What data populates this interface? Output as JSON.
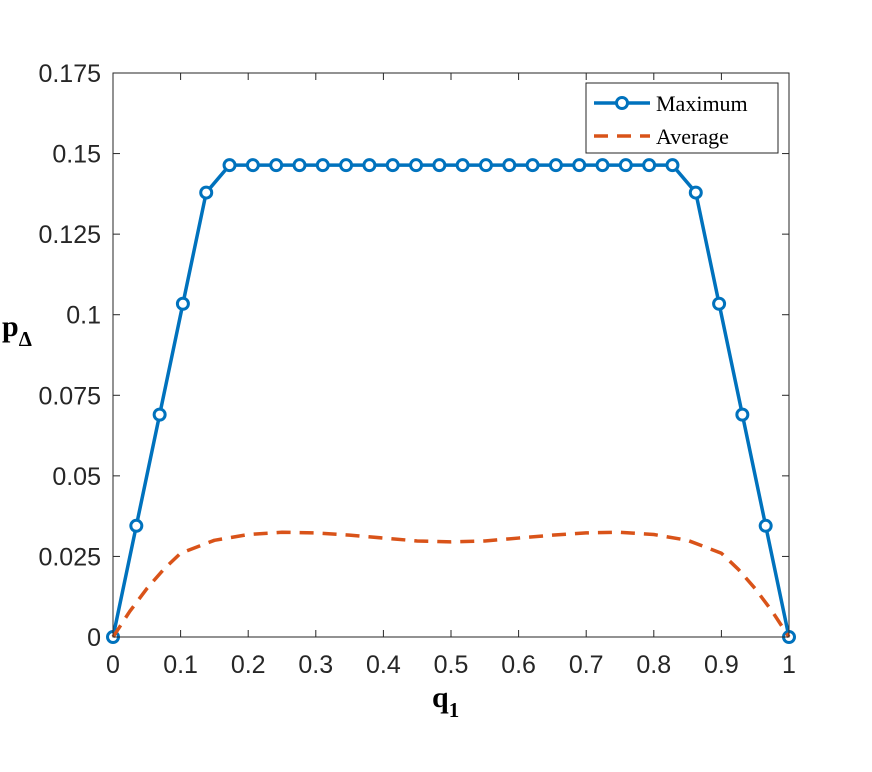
{
  "chart_data": {
    "type": "line",
    "xlabel": "q",
    "xlabel_sub": "1",
    "ylabel": "p",
    "ylabel_sub": "Δ",
    "xlim": [
      0,
      1
    ],
    "ylim": [
      0,
      0.175
    ],
    "x_ticks": [
      0,
      0.1,
      0.2,
      0.3,
      0.4,
      0.5,
      0.6,
      0.7,
      0.8,
      0.9,
      1
    ],
    "x_tick_labels": [
      "0",
      "0.1",
      "0.2",
      "0.3",
      "0.4",
      "0.5",
      "0.6",
      "0.7",
      "0.8",
      "0.9",
      "1"
    ],
    "y_ticks": [
      0,
      0.025,
      0.05,
      0.075,
      0.1,
      0.125,
      0.15,
      0.175
    ],
    "y_tick_labels": [
      "0",
      "0.025",
      "0.05",
      "0.075",
      "0.1",
      "0.125",
      "0.15",
      "0.175"
    ],
    "grid": false,
    "legend_position": "top-right",
    "series": [
      {
        "name": "Maximum",
        "style": "solid-circle-markers",
        "color": "#0072BD",
        "x": [
          0,
          0.0345,
          0.069,
          0.1034,
          0.1379,
          0.1724,
          0.2069,
          0.2414,
          0.2759,
          0.3103,
          0.3448,
          0.3793,
          0.4138,
          0.4483,
          0.4828,
          0.5172,
          0.5517,
          0.5862,
          0.6207,
          0.6552,
          0.6897,
          0.7241,
          0.7586,
          0.7931,
          0.8276,
          0.8621,
          0.8966,
          0.931,
          0.9655,
          1
        ],
        "y": [
          0,
          0.0345,
          0.069,
          0.1034,
          0.1379,
          0.1464,
          0.1464,
          0.1464,
          0.1464,
          0.1464,
          0.1464,
          0.1464,
          0.1464,
          0.1464,
          0.1464,
          0.1464,
          0.1464,
          0.1464,
          0.1464,
          0.1464,
          0.1464,
          0.1464,
          0.1464,
          0.1464,
          0.1464,
          0.1379,
          0.1034,
          0.069,
          0.0345,
          0
        ]
      },
      {
        "name": "Average",
        "style": "dashed",
        "color": "#D95319",
        "x": [
          0,
          0.025,
          0.05,
          0.075,
          0.1,
          0.15,
          0.2,
          0.25,
          0.3,
          0.35,
          0.4,
          0.45,
          0.5,
          0.55,
          0.6,
          0.65,
          0.7,
          0.75,
          0.8,
          0.85,
          0.9,
          0.925,
          0.95,
          0.975,
          1
        ],
        "y": [
          0,
          0.008,
          0.015,
          0.021,
          0.026,
          0.03,
          0.0318,
          0.0325,
          0.0323,
          0.0316,
          0.0307,
          0.0298,
          0.0295,
          0.0298,
          0.0307,
          0.0316,
          0.0323,
          0.0325,
          0.0318,
          0.03,
          0.026,
          0.021,
          0.015,
          0.008,
          0
        ]
      }
    ]
  }
}
